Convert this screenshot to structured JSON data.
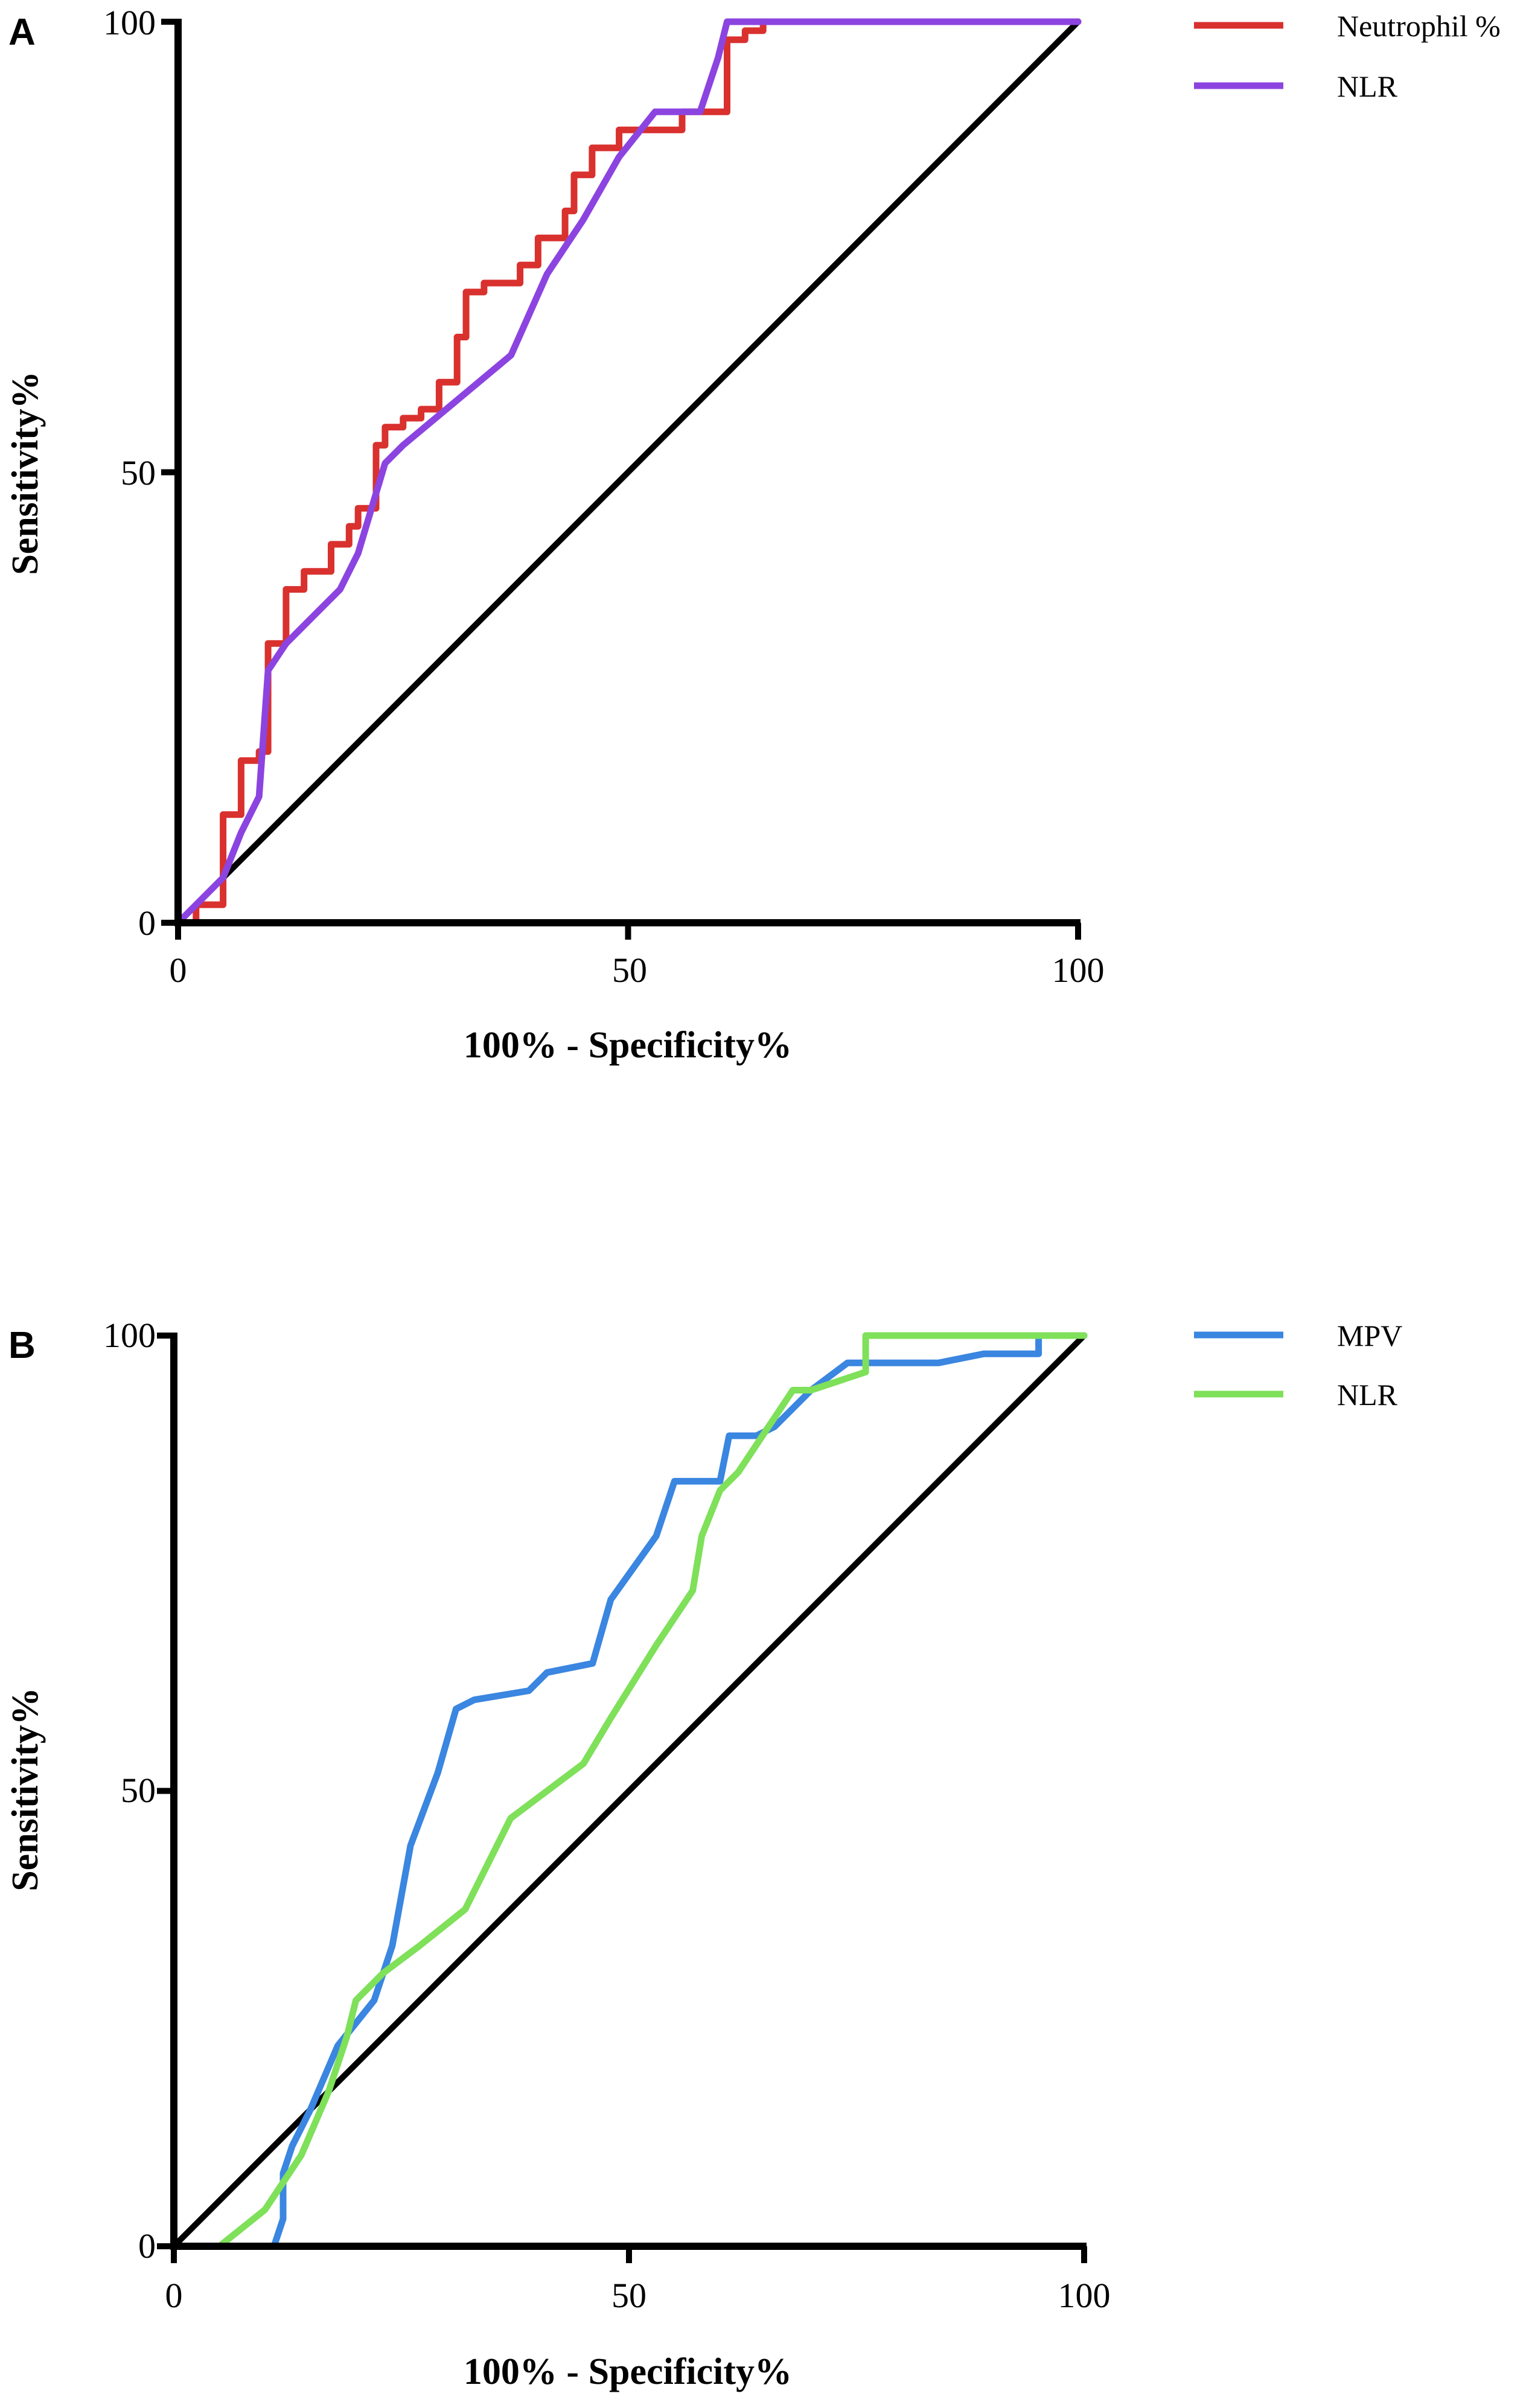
{
  "chart_data": [
    {
      "type": "line",
      "panel_label": "A",
      "xlabel": "100% - Specificity%",
      "ylabel": "Sensitivity%",
      "xlim": [
        0,
        100
      ],
      "ylim": [
        0,
        100
      ],
      "xticks": [
        "0",
        "50",
        "100"
      ],
      "yticks": [
        "0",
        "50",
        "100"
      ],
      "legend_position": "top-right",
      "reference_line": {
        "name": "Reference",
        "color": "#000000",
        "x": [
          0,
          100
        ],
        "y": [
          0,
          100
        ]
      },
      "series": [
        {
          "name": "Neutrophil %",
          "color": "#d9312e",
          "step": true,
          "x": [
            0,
            0,
            2,
            2,
            5,
            5,
            7,
            7,
            9,
            9,
            10,
            10,
            12,
            12,
            14,
            14,
            17,
            17,
            19,
            19,
            20,
            20,
            22,
            22,
            23,
            23,
            25,
            25,
            27,
            27,
            29,
            29,
            31,
            31,
            32,
            32,
            34,
            34,
            38,
            38,
            40,
            40,
            43,
            43,
            44,
            44,
            46,
            46,
            49,
            49,
            56,
            56,
            61,
            61,
            63,
            63,
            65,
            65,
            100
          ],
          "y": [
            0,
            0,
            0,
            2,
            2,
            12,
            12,
            18,
            18,
            19,
            19,
            31,
            31,
            37,
            37,
            39,
            39,
            42,
            42,
            44,
            44,
            46,
            46,
            53,
            53,
            55,
            55,
            56,
            56,
            57,
            57,
            60,
            60,
            65,
            65,
            70,
            70,
            71,
            71,
            73,
            73,
            76,
            76,
            79,
            79,
            83,
            83,
            86,
            86,
            88,
            88,
            90,
            90,
            98,
            98,
            99,
            99,
            100,
            100
          ]
        },
        {
          "name": "NLR",
          "color": "#8c44e0",
          "step": false,
          "x": [
            0,
            5,
            7,
            9,
            10,
            12,
            18,
            20,
            23,
            25,
            31,
            37,
            41,
            45,
            49,
            53,
            58,
            60,
            61,
            65,
            100
          ],
          "y": [
            0,
            5,
            10,
            14,
            28,
            31,
            37,
            41,
            51,
            53,
            58,
            63,
            72,
            78,
            85,
            90,
            90,
            96,
            100,
            100,
            100
          ]
        }
      ]
    },
    {
      "type": "line",
      "panel_label": "B",
      "xlabel": "100% - Specificity%",
      "ylabel": "Sensitivity%",
      "xlim": [
        0,
        100
      ],
      "ylim": [
        0,
        100
      ],
      "xticks": [
        "0",
        "50",
        "100"
      ],
      "yticks": [
        "0",
        "50",
        "100"
      ],
      "legend_position": "top-right",
      "reference_line": {
        "name": "Reference",
        "color": "#000000",
        "x": [
          0,
          100
        ],
        "y": [
          0,
          100
        ]
      },
      "series": [
        {
          "name": "MPV",
          "color": "#3a86e0",
          "step": false,
          "x": [
            0,
            11,
            12,
            12,
            13,
            15,
            18,
            22,
            24,
            26,
            29,
            31,
            33,
            39,
            41,
            46,
            48,
            53,
            55,
            60,
            61,
            64,
            66,
            68,
            69,
            70,
            74,
            84,
            89,
            95,
            95,
            100
          ],
          "y": [
            0,
            0,
            3,
            8,
            11,
            15,
            22,
            27,
            33,
            44,
            52,
            59,
            60,
            61,
            63,
            64,
            71,
            78,
            84,
            84,
            89,
            89,
            90,
            92,
            93,
            94,
            97,
            97,
            98,
            98,
            100,
            100
          ]
        },
        {
          "name": "NLR",
          "color": "#7fe05a",
          "step": false,
          "x": [
            0,
            5,
            10,
            14,
            17,
            19,
            20,
            23,
            27,
            32,
            37,
            45,
            48,
            53,
            57,
            58,
            60,
            62,
            68,
            70,
            76,
            76,
            100
          ],
          "y": [
            0,
            0,
            4,
            10,
            17,
            23,
            27,
            30,
            33,
            37,
            47,
            53,
            58,
            66,
            72,
            78,
            83,
            85,
            94,
            94,
            96,
            100,
            100
          ]
        }
      ]
    }
  ]
}
